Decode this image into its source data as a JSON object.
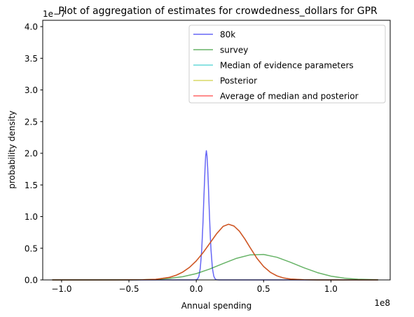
{
  "chart_data": {
    "type": "line",
    "title": "Plot of aggregation of estimates for crowdedness_dollars for GPR",
    "xlabel": "Annual spending",
    "ylabel": "probability density",
    "x_offset_label": "1e8",
    "y_offset_label": "1e−7",
    "xlim": [
      -114000000.0,
      144000000.0
    ],
    "ylim": [
      0,
      4.1e-07
    ],
    "xticks": [
      -100000000.0,
      -50000000.0,
      0,
      50000000.0,
      100000000.0
    ],
    "xtick_labels": [
      "−1.0",
      "−0.5",
      "0.0",
      "0.5",
      "1.0"
    ],
    "yticks": [
      0,
      5e-08,
      1e-07,
      1.5e-07,
      2e-07,
      2.5e-07,
      3e-07,
      3.5e-07,
      4e-07
    ],
    "ytick_labels": [
      "0.0",
      "0.5",
      "1.0",
      "1.5",
      "2.0",
      "2.5",
      "3.0",
      "3.5",
      "4.0"
    ],
    "grid": false,
    "legend_position": "top-right",
    "series": [
      {
        "name": "80k",
        "color": "#0000ee",
        "opacity": 0.6,
        "x": [
          -107000000.0,
          -15000000.0,
          -10000000.0,
          -5000000.0,
          -3000000.0,
          -1000000.0,
          0,
          1000000.0,
          2000000.0,
          3000000.0,
          4000000.0,
          5000000.0,
          5500000.0,
          6000000.0,
          6500000.0,
          7000000.0,
          7500000.0,
          8000000.0,
          8500000.0,
          9000000.0,
          9500000.0,
          10000000.0,
          10500000.0,
          11000000.0,
          12000000.0,
          13000000.0,
          14000000.0,
          15000000.0,
          17000000.0,
          20000000.0,
          30000000.0,
          135000000.0
        ],
        "y": [
          0,
          0,
          0,
          0,
          0,
          1e-10,
          3e-10,
          1.5e-09,
          5.9e-09,
          1.85e-08,
          4.62e-08,
          9.16e-08,
          1.198e-07,
          1.485e-07,
          1.76e-07,
          1.958e-07,
          2.04e-07,
          1.958e-07,
          1.76e-07,
          1.485e-07,
          1.198e-07,
          9.16e-08,
          6.67e-08,
          4.62e-08,
          1.85e-08,
          5.9e-09,
          1.5e-09,
          3e-10,
          0,
          0,
          0,
          0
        ]
      },
      {
        "name": "survey",
        "color": "#008000",
        "opacity": 0.6,
        "x": [
          -107000000.0,
          -75000000.0,
          -50000000.0,
          -40000000.0,
          -30000000.0,
          -20000000.0,
          -10000000.0,
          0,
          10000000.0,
          20000000.0,
          30000000.0,
          40000000.0,
          50000000.0,
          60000000.0,
          70000000.0,
          80000000.0,
          90000000.0,
          100000000.0,
          110000000.0,
          120000000.0,
          135000000.0
        ],
        "y": [
          0,
          0,
          1e-10,
          3e-10,
          9e-10,
          2.3e-09,
          5.1e-09,
          1e-08,
          1.72e-08,
          2.59e-08,
          3.42e-08,
          3.96e-08,
          4.02e-08,
          3.57e-08,
          2.79e-08,
          1.91e-08,
          1.15e-08,
          6e-09,
          2.8e-09,
          1.1e-09,
          2e-10
        ]
      },
      {
        "name": "Median of evidence parameters",
        "color": "#00bfbf",
        "opacity": 0.6,
        "x": [
          -107000000.0,
          -60000000.0,
          -40000000.0,
          -30000000.0,
          -20000000.0,
          -15000000.0,
          -10000000.0,
          -5000000.0,
          0,
          5000000.0,
          10000000.0,
          15000000.0,
          20000000.0,
          24000000.0,
          28000000.0,
          32000000.0,
          36000000.0,
          40000000.0,
          45000000.0,
          50000000.0,
          55000000.0,
          60000000.0,
          65000000.0,
          70000000.0,
          80000000.0,
          90000000.0,
          110000000.0,
          135000000.0
        ],
        "y": [
          0,
          0,
          2e-10,
          1e-09,
          4e-09,
          7.3e-09,
          1.24e-08,
          1.99e-08,
          3.01e-08,
          4.29e-08,
          5.77e-08,
          7.26e-08,
          8.46e-08,
          8.8e-08,
          8.51e-08,
          7.7e-08,
          6.49e-08,
          5.1e-08,
          3.43e-08,
          2.12e-08,
          1.2e-08,
          6.3e-09,
          3e-09,
          1.3e-09,
          2e-10,
          0,
          0,
          0
        ]
      },
      {
        "name": "Posterior",
        "color": "#bfbf00",
        "opacity": 0.6,
        "x": [
          -107000000.0,
          -60000000.0,
          -40000000.0,
          -30000000.0,
          -20000000.0,
          -15000000.0,
          -10000000.0,
          -5000000.0,
          0,
          5000000.0,
          10000000.0,
          15000000.0,
          20000000.0,
          24000000.0,
          28000000.0,
          32000000.0,
          36000000.0,
          40000000.0,
          45000000.0,
          50000000.0,
          55000000.0,
          60000000.0,
          65000000.0,
          70000000.0,
          80000000.0,
          90000000.0,
          110000000.0,
          135000000.0
        ],
        "y": [
          0,
          0,
          2e-10,
          1e-09,
          4e-09,
          7.3e-09,
          1.24e-08,
          1.99e-08,
          3.01e-08,
          4.29e-08,
          5.77e-08,
          7.26e-08,
          8.46e-08,
          8.8e-08,
          8.51e-08,
          7.7e-08,
          6.49e-08,
          5.1e-08,
          3.43e-08,
          2.12e-08,
          1.2e-08,
          6.3e-09,
          3e-09,
          1.3e-09,
          2e-10,
          0,
          0,
          0
        ]
      },
      {
        "name": "Average of median and posterior",
        "color": "#ff0000",
        "opacity": 0.6,
        "x": [
          -107000000.0,
          -60000000.0,
          -40000000.0,
          -30000000.0,
          -20000000.0,
          -15000000.0,
          -10000000.0,
          -5000000.0,
          0,
          5000000.0,
          10000000.0,
          15000000.0,
          20000000.0,
          24000000.0,
          28000000.0,
          32000000.0,
          36000000.0,
          40000000.0,
          45000000.0,
          50000000.0,
          55000000.0,
          60000000.0,
          65000000.0,
          70000000.0,
          80000000.0,
          90000000.0,
          110000000.0,
          135000000.0
        ],
        "y": [
          0,
          0,
          2e-10,
          1e-09,
          4e-09,
          7.3e-09,
          1.24e-08,
          1.99e-08,
          3.01e-08,
          4.29e-08,
          5.77e-08,
          7.26e-08,
          8.46e-08,
          8.8e-08,
          8.51e-08,
          7.7e-08,
          6.49e-08,
          5.1e-08,
          3.43e-08,
          2.12e-08,
          1.2e-08,
          6.3e-09,
          3e-09,
          1.3e-09,
          2e-10,
          0,
          0,
          0
        ]
      }
    ]
  }
}
